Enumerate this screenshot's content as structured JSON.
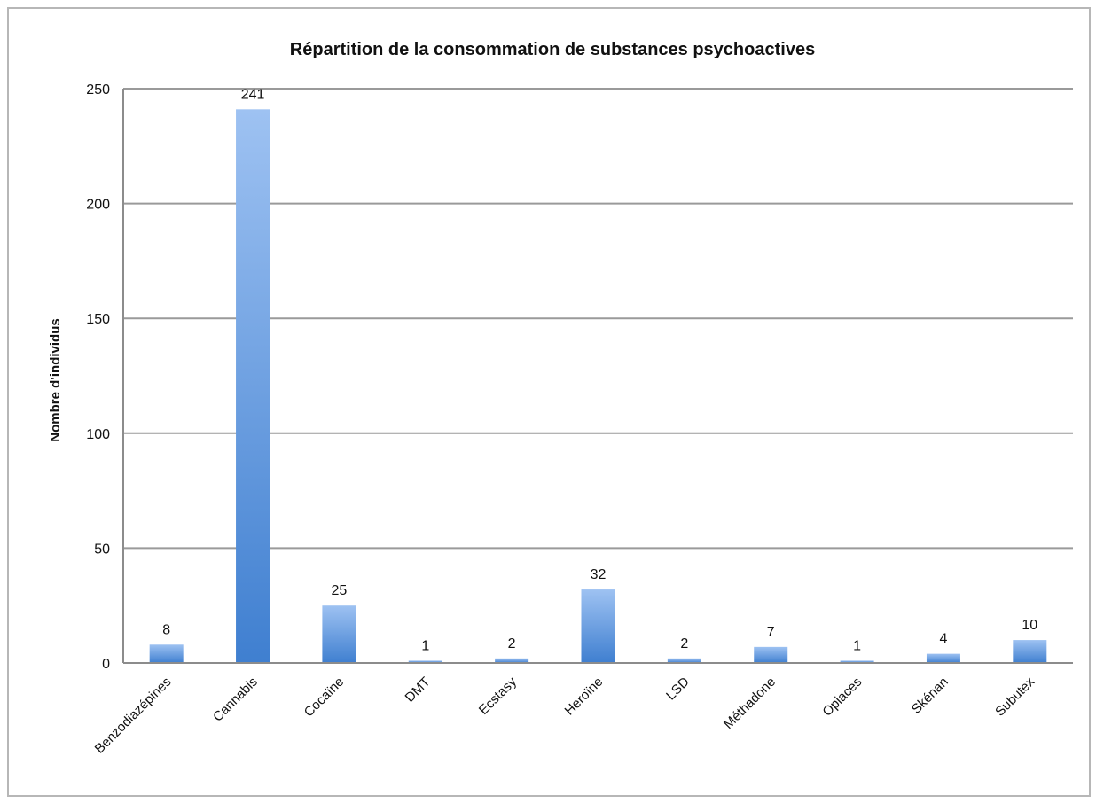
{
  "chart_data": {
    "type": "bar",
    "title": "Répartition de la consommation de substances psychoactives",
    "xlabel": "",
    "ylabel": "Nombre d'individus",
    "categories": [
      "Benzodiazépines",
      "Cannabis",
      "Cocaïne",
      "DMT",
      "Ecstasy",
      "Heroïne",
      "LSD",
      "Méthadone",
      "Opiacés",
      "Skénan",
      "Subutex"
    ],
    "values": [
      8,
      241,
      25,
      1,
      2,
      32,
      2,
      7,
      1,
      4,
      10
    ],
    "data_labels": [
      "8",
      "241",
      "25",
      "1",
      "2",
      "32",
      "2",
      "7",
      "1",
      "4",
      "10"
    ],
    "ylim": [
      0,
      250
    ],
    "yticks": [
      0,
      50,
      100,
      150,
      200,
      250
    ],
    "grid": true,
    "legend": "none",
    "bar_color_top": "#9ec2f2",
    "bar_color_bottom": "#3f7fd0"
  }
}
